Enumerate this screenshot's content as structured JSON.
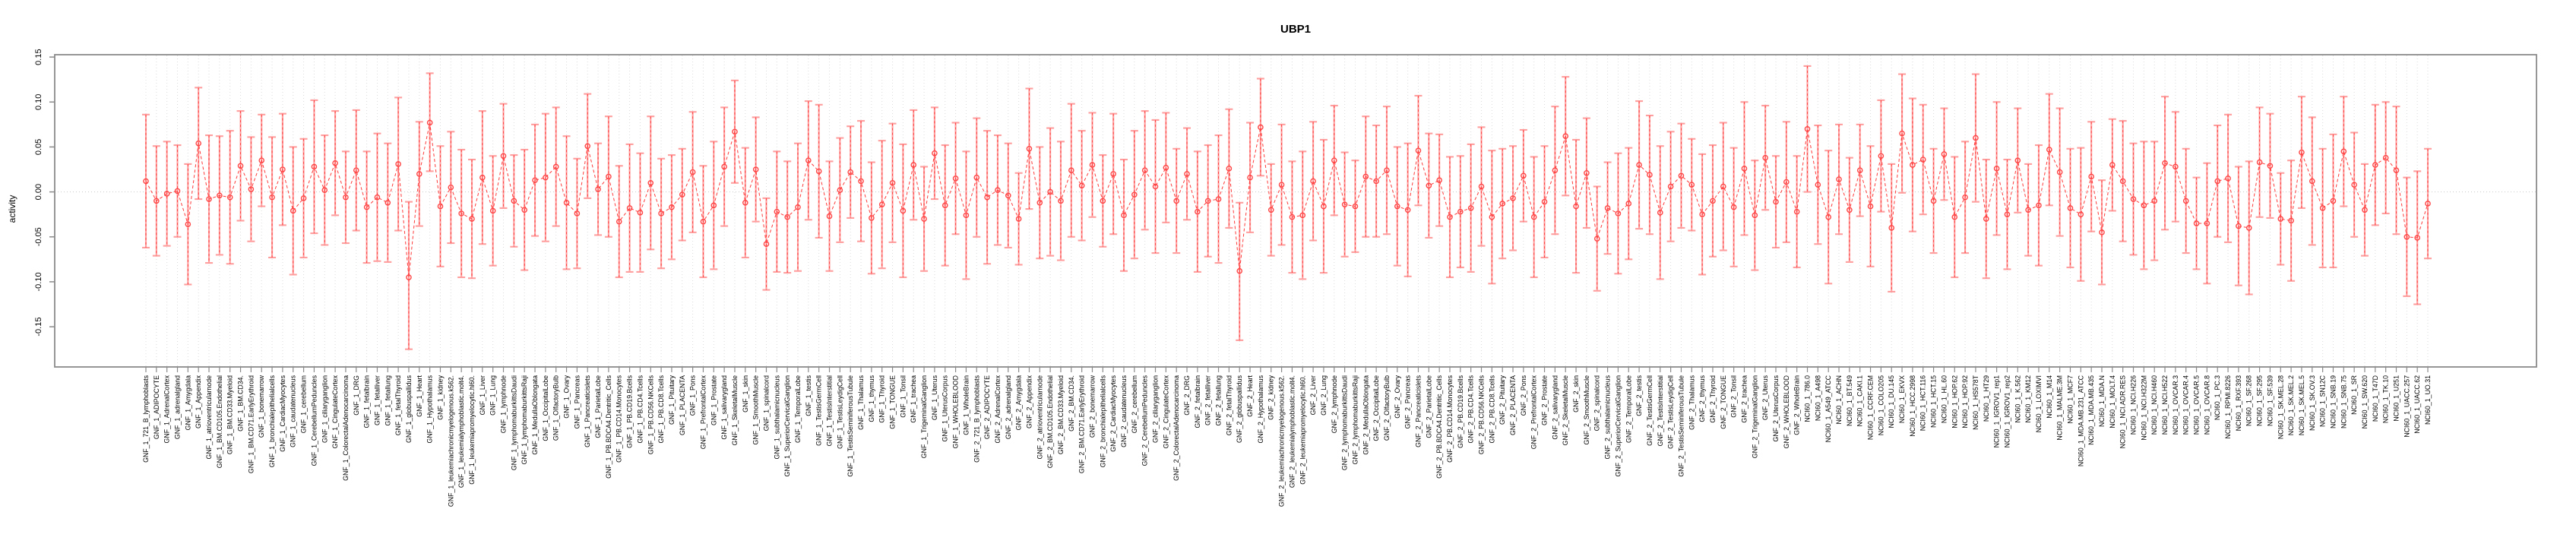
{
  "chart_data": {
    "type": "scatter",
    "subtype": "point-estimates-with-error-bars",
    "title": "UBP1",
    "ylabel": "activity",
    "xlabel": "",
    "ylim": [
      -0.18,
      0.17
    ],
    "yticks": [
      {
        "value": -0.15,
        "label": "-0.15"
      },
      {
        "value": -0.1,
        "label": "-0.10"
      },
      {
        "value": -0.05,
        "label": "-0.05"
      },
      {
        "value": 0.0,
        "label": "0.00"
      },
      {
        "value": 0.05,
        "label": "0.05"
      },
      {
        "value": 0.1,
        "label": "0.10"
      },
      {
        "value": 0.15,
        "label": "0.15"
      }
    ],
    "grid": "vertical-dotted-per-category-plus-zero-line",
    "legend": "none",
    "colors": {
      "point": "#ff4545",
      "errorbar": "#ff9e9e",
      "dash": "#ff3a3a",
      "grid": "#dcdcdc",
      "zero_line": "#c8c8c8",
      "box": "#8a8a8a",
      "text": "#000000"
    },
    "categories": [
      "GNF_1_721_B_lymphoblasts",
      "GNF_1_ADIPOCYTE",
      "GNF_1_AdrenalCortex",
      "GNF_1_adrenalgland",
      "GNF_1_Amygdala",
      "GNF_1_Appendix",
      "GNF_1_atrioventricularnode",
      "GNF_1_BM.CD105.Endothelial",
      "GNF_1_BM.CD33.Myeloid",
      "GNF_1_BM.CD34.",
      "GNF_1_BM.CD71.EarlyErythroid",
      "GNF_1_bonemarrow",
      "GNF_1_bronchialepithelialcells",
      "GNF_1_CardiacMyocytes",
      "GNF_1_caudatenucleus",
      "GNF_1_cerebellum",
      "GNF_1_CerebellumPeduncles",
      "GNF_1_ciliaryganglion",
      "GNF_1_CingulateCortex",
      "GNF_1_ColorectalAdenocarcinoma",
      "GNF_1_DRG",
      "GNF_1_fetalbrain",
      "GNF_1_fetalliver",
      "GNF_1_fetallung",
      "GNF_1_fetalThyroid",
      "GNF_1_globuspallidus",
      "GNF_1_Heart",
      "GNF_1_Hypothalamus",
      "GNF_1_kidney",
      "GNF_1_leukemiachronicmyelogenous.k562.",
      "GNF_1_leukemialymphoblastic.molt4.",
      "GNF_1_leukemiapromyelocytic.hl60.",
      "GNF_1_Liver",
      "GNF_1_Lung",
      "GNF_1_lymphnode",
      "GNF_1_lymphomaburkittsDaudi",
      "GNF_1_lymphomaburkittsRaji",
      "GNF_1_MedullaOblongata",
      "GNF_1_OccipitalLobe",
      "GNF_1_OlfactoryBulb",
      "GNF_1_Ovary",
      "GNF_1_Pancreas",
      "GNF_1_Pancreaticislets",
      "GNF_1_ParietalLobe",
      "GNF_1_PB.BDCA4.Dentritic_Cells",
      "GNF_1_PB.CD14.Monocytes",
      "GNF_1_PB.CD19.Bcells",
      "GNF_1_PB.CD4.Tcells",
      "GNF_1_PB.CD56.NKCells",
      "GNF_1_PB.CD8.Tcells",
      "GNF_1_Pituitary",
      "GNF_1_PLACENTA",
      "GNF_1_Pons",
      "GNF_1_PrefrontalCortex",
      "GNF_1_Prostate",
      "GNF_1_salivarygland",
      "GNF_1_SkeletalMuscle",
      "GNF_1_skin",
      "GNF_1_SmoothMuscle",
      "GNF_1_spinalcord",
      "GNF_1_subthalamicnucleus",
      "GNF_1_SuperiorCervicalGanglion",
      "GNF_1_TemporalLobe",
      "GNF_1_testis",
      "GNF_1_TestisGermCell",
      "GNF_1_TestisInterstitial",
      "GNF_1_TestisLeydigCell",
      "GNF_1_TestisSeminiferousTubule",
      "GNF_1_Thalamus",
      "GNF_1_thymus",
      "GNF_1_Thyroid",
      "GNF_1_TONGUE",
      "GNF_1_Tonsil",
      "GNF_1_trachea",
      "GNF_1_TrigeminalGanglion",
      "GNF_1_Uterus",
      "GNF_1_UterusCorpus",
      "GNF_1_WHOLEBLOOD",
      "GNF_1_WholeBrain",
      "GNF_2_721_B_lymphoblasts",
      "GNF_2_ADIPOCYTE",
      "GNF_2_AdrenalCortex",
      "GNF_2_adrenalgland",
      "GNF_2_Amygdala",
      "GNF_2_Appendix",
      "GNF_2_atrioventricularnode",
      "GNF_2_BM.CD105.Endothelial",
      "GNF_2_BM.CD33.Myeloid",
      "GNF_2_BM.CD34.",
      "GNF_2_BM.CD71.EarlyErythroid",
      "GNF_2_bonemarrow",
      "GNF_2_bronchialepithelialcells",
      "GNF_2_CardiacMyocytes",
      "GNF_2_caudatenucleus",
      "GNF_2_cerebellum",
      "GNF_2_CerebellumPeduncles",
      "GNF_2_ciliaryganglion",
      "GNF_2_CingulateCortex",
      "GNF_2_ColorectalAdenocarcinoma",
      "GNF_2_DRG",
      "GNF_2_fetalbrain",
      "GNF_2_fetalliver",
      "GNF_2_fetallung",
      "GNF_2_fetalThyroid",
      "GNF_2_globuspallidus",
      "GNF_2_Heart",
      "GNF_2_Hypothalamus",
      "GNF_2_kidney",
      "GNF_2_leukemiachronicmyelogenous.k562.",
      "GNF_2_leukemialymphoblastic.molt4.",
      "GNF_2_leukemiapromyelocytic.hl60.",
      "GNF_2_Liver",
      "GNF_2_Lung",
      "GNF_2_lymphnode",
      "GNF_2_lymphomaburkittsDaudi",
      "GNF_2_lymphomaburkittsRaji",
      "GNF_2_MedullaOblongata",
      "GNF_2_OccipitalLobe",
      "GNF_2_OlfactoryBulb",
      "GNF_2_Ovary",
      "GNF_2_Pancreas",
      "GNF_2_Pancreaticislets",
      "GNF_2_ParietalLobe",
      "GNF_2_PB.BDCA4.Dentritic_Cells",
      "GNF_2_PB.CD14.Monocytes",
      "GNF_2_PB.CD19.Bcells",
      "GNF_2_PB.CD4.Tcells",
      "GNF_2_PB.CD56.NKCells",
      "GNF_2_PB.CD8.Tcells",
      "GNF_2_Pituitary",
      "GNF_2_PLACENTA",
      "GNF_2_Pons",
      "GNF_2_PrefrontalCortex",
      "GNF_2_Prostate",
      "GNF_2_salivarygland",
      "GNF_2_SkeletalMuscle",
      "GNF_2_skin",
      "GNF_2_SmoothMuscle",
      "GNF_2_spinalcord",
      "GNF_2_subthalamicnucleus",
      "GNF_2_SuperiorCervicalGanglion",
      "GNF_2_TemporalLobe",
      "GNF_2_testis",
      "GNF_2_TestisGermCell",
      "GNF_2_TestisInterstitial",
      "GNF_2_TestisLeydigCell",
      "GNF_2_TestisSeminiferousTubule",
      "GNF_2_Thalamus",
      "GNF_2_thymus",
      "GNF_2_Thyroid",
      "GNF_2_TONGUE",
      "GNF_2_Tonsil",
      "GNF_2_trachea",
      "GNF_2_TrigeminalGanglion",
      "GNF_2_Uterus",
      "GNF_2_UterusCorpus",
      "GNF_2_WHOLEBLOOD",
      "GNF_2_WholeBrain",
      "NCI60_1_786.0",
      "NCI60_1_A498",
      "NCI60_1_A549_ATCC",
      "NCI60_1_ACHN",
      "NCI60_1_BT.549",
      "NCI60_1_CAKI.1",
      "NCI60_1_CCRF.CEM",
      "NCI60_1_COLO205",
      "NCI60_1_DU.145",
      "NCI60_1_EKVX",
      "NCI60_1_HCC.2998",
      "NCI60_1_HCT.116",
      "NCI60_1_HCT.15",
      "NCI60_1_HL.60",
      "NCI60_1_HOP.62",
      "NCI60_1_HOP.92",
      "NCI60_1_HS578T",
      "NCI60_1_HT29",
      "NCI60_1_IGROV1_rep1",
      "NCI60_1_IGROV1_rep2",
      "NCI60_1_K.562",
      "NCI60_1_KM12",
      "NCI60_1_LOXIMVI",
      "NCI60_1_M14",
      "NCI60_1_MALME.3M",
      "NCI60_1_MCF7",
      "NCI60_1_MDA.MB.231_ATCC",
      "NCI60_1_MDA.MB.435",
      "NCI60_1_MDA.N",
      "NCI60_1_MOLT.4",
      "NCI60_1_NCI.ADR.RES",
      "NCI60_1_NCI.H226",
      "NCI60_1_NCI.H322M",
      "NCI60_1_NCI.H460",
      "NCI60_1_NCI.H522",
      "NCI60_1_OVCAR.3",
      "NCI60_1_OVCAR.4",
      "NCI60_1_OVCAR.5",
      "NCI60_1_OVCAR.8",
      "NCI60_1_PC.3",
      "NCI60_1_RPMI.8226",
      "NCI60_1_RXF.393",
      "NCI60_1_SF.268",
      "NCI60_1_SF.295",
      "NCI60_1_SF.539",
      "NCI60_1_SK.MEL.28",
      "NCI60_1_SK.MEL.2",
      "NCI60_1_SK.MEL.5",
      "NCI60_1_SK.OV.3",
      "NCI60_1_SN12C",
      "NCI60_1_SNB.19",
      "NCI60_1_SNB.75",
      "NCI60_1_SR",
      "NCI60_1_SW.620",
      "NCI60_1_T47D",
      "NCI60_1_TK.10",
      "NCI60_1_U251",
      "NCI60_1_UACC.257",
      "NCI60_1_UACC.62",
      "NCI60_1_UO.31"
    ],
    "values": [
      0.012,
      -0.01,
      -0.002,
      0.001,
      -0.036,
      0.054,
      -0.008,
      -0.004,
      -0.006,
      0.029,
      0.003,
      0.035,
      -0.006,
      0.025,
      -0.021,
      -0.007,
      0.028,
      0.002,
      0.032,
      -0.006,
      0.024,
      -0.017,
      -0.006,
      -0.012,
      0.031,
      -0.095,
      0.02,
      0.077,
      -0.016,
      0.005,
      -0.024,
      -0.03,
      0.016,
      -0.021,
      0.04,
      -0.01,
      -0.02,
      0.013,
      0.016,
      0.028,
      -0.012,
      -0.024,
      0.051,
      0.003,
      0.017,
      -0.033,
      -0.018,
      -0.023,
      0.01,
      -0.024,
      -0.017,
      -0.003,
      0.022,
      -0.033,
      -0.015,
      0.028,
      0.067,
      -0.012,
      0.025,
      -0.058,
      -0.022,
      -0.028,
      -0.017,
      0.035,
      0.023,
      -0.027,
      0.002,
      0.022,
      0.012,
      -0.029,
      -0.014,
      0.01,
      -0.021,
      0.03,
      -0.03,
      0.043,
      -0.015,
      0.015,
      -0.026,
      0.016,
      -0.006,
      0.002,
      -0.004,
      -0.03,
      0.048,
      -0.012,
      0.0,
      -0.01,
      0.024,
      0.007,
      0.03,
      -0.01,
      0.02,
      -0.026,
      -0.003,
      0.024,
      0.006,
      0.027,
      -0.01,
      0.02,
      -0.022,
      -0.01,
      -0.008,
      0.026,
      -0.088,
      0.016,
      0.072,
      -0.02,
      0.008,
      -0.028,
      -0.026,
      0.012,
      -0.016,
      0.035,
      -0.014,
      -0.016,
      0.017,
      0.012,
      0.024,
      -0.016,
      -0.02,
      0.046,
      0.007,
      0.013,
      -0.028,
      -0.022,
      -0.018,
      0.006,
      -0.028,
      -0.013,
      -0.007,
      0.018,
      -0.028,
      -0.011,
      0.024,
      0.062,
      -0.016,
      0.021,
      -0.052,
      -0.018,
      -0.024,
      -0.013,
      0.03,
      0.019,
      -0.023,
      0.006,
      0.018,
      0.008,
      -0.025,
      -0.01,
      0.006,
      -0.017,
      0.026,
      -0.026,
      0.038,
      -0.011,
      0.011,
      -0.022,
      0.07,
      0.008,
      -0.028,
      0.014,
      -0.02,
      0.024,
      -0.016,
      0.04,
      -0.04,
      0.065,
      0.03,
      0.036,
      -0.01,
      0.042,
      -0.028,
      -0.006,
      0.06,
      -0.03,
      0.026,
      -0.025,
      0.035,
      -0.02,
      -0.015,
      0.047,
      0.022,
      -0.018,
      -0.025,
      0.017,
      -0.045,
      0.03,
      0.012,
      -0.008,
      -0.015,
      -0.01,
      0.032,
      0.028,
      -0.01,
      -0.035,
      -0.035,
      0.012,
      0.015,
      -0.038,
      -0.04,
      0.033,
      0.029,
      -0.03,
      -0.032,
      0.044,
      0.012,
      -0.018,
      -0.01,
      0.045,
      0.008,
      -0.02,
      0.03,
      0.038,
      0.024,
      -0.05,
      -0.051,
      -0.013
    ],
    "ci_halfwidth": [
      0.074,
      0.061,
      0.058,
      0.051,
      0.067,
      0.062,
      0.071,
      0.066,
      0.074,
      0.061,
      0.058,
      0.051,
      0.067,
      0.062,
      0.071,
      0.066,
      0.074,
      0.061,
      0.058,
      0.051,
      0.067,
      0.062,
      0.071,
      0.066,
      0.074,
      0.061,
      0.058,
      0.051,
      0.067,
      0.062,
      0.071,
      0.066,
      0.074,
      0.061,
      0.058,
      0.051,
      0.067,
      0.062,
      0.071,
      0.066,
      0.074,
      0.061,
      0.058,
      0.051,
      0.067,
      0.062,
      0.071,
      0.066,
      0.074,
      0.061,
      0.058,
      0.051,
      0.067,
      0.062,
      0.071,
      0.066,
      0.074,
      0.061,
      0.058,
      0.051,
      0.067,
      0.062,
      0.071,
      0.066,
      0.074,
      0.061,
      0.058,
      0.051,
      0.067,
      0.062,
      0.071,
      0.066,
      0.074,
      0.061,
      0.058,
      0.051,
      0.067,
      0.062,
      0.071,
      0.066,
      0.074,
      0.061,
      0.058,
      0.051,
      0.067,
      0.062,
      0.071,
      0.066,
      0.074,
      0.061,
      0.058,
      0.051,
      0.067,
      0.062,
      0.071,
      0.066,
      0.074,
      0.061,
      0.058,
      0.051,
      0.067,
      0.062,
      0.071,
      0.066,
      0.074,
      0.061,
      0.058,
      0.051,
      0.067,
      0.062,
      0.071,
      0.066,
      0.074,
      0.061,
      0.058,
      0.051,
      0.067,
      0.062,
      0.071,
      0.066,
      0.074,
      0.061,
      0.058,
      0.051,
      0.067,
      0.062,
      0.071,
      0.066,
      0.074,
      0.061,
      0.058,
      0.051,
      0.067,
      0.062,
      0.071,
      0.066,
      0.074,
      0.061,
      0.058,
      0.051,
      0.067,
      0.062,
      0.071,
      0.066,
      0.074,
      0.061,
      0.058,
      0.051,
      0.067,
      0.062,
      0.071,
      0.066,
      0.074,
      0.061,
      0.058,
      0.051,
      0.067,
      0.062,
      0.071,
      0.066,
      0.074,
      0.061,
      0.058,
      0.051,
      0.067,
      0.062,
      0.071,
      0.066,
      0.074,
      0.061,
      0.058,
      0.051,
      0.067,
      0.062,
      0.071,
      0.066,
      0.074,
      0.061,
      0.058,
      0.051,
      0.067,
      0.062,
      0.071,
      0.066,
      0.074,
      0.061,
      0.058,
      0.051,
      0.067,
      0.062,
      0.071,
      0.066,
      0.074,
      0.061,
      0.058,
      0.051,
      0.067,
      0.062,
      0.071,
      0.066,
      0.074,
      0.061,
      0.058,
      0.051,
      0.067,
      0.062,
      0.071,
      0.066,
      0.074,
      0.061,
      0.058,
      0.051,
      0.067,
      0.062,
      0.071,
      0.066,
      0.074,
      0.061
    ],
    "ci_overrides": {
      "25": [
        -0.175,
        -0.011
      ],
      "27": [
        0.023,
        0.132
      ],
      "56": [
        0.01,
        0.124
      ],
      "104": [
        -0.165,
        -0.012
      ],
      "106": [
        0.018,
        0.126
      ],
      "158": [
        0.0,
        0.14
      ]
    }
  }
}
